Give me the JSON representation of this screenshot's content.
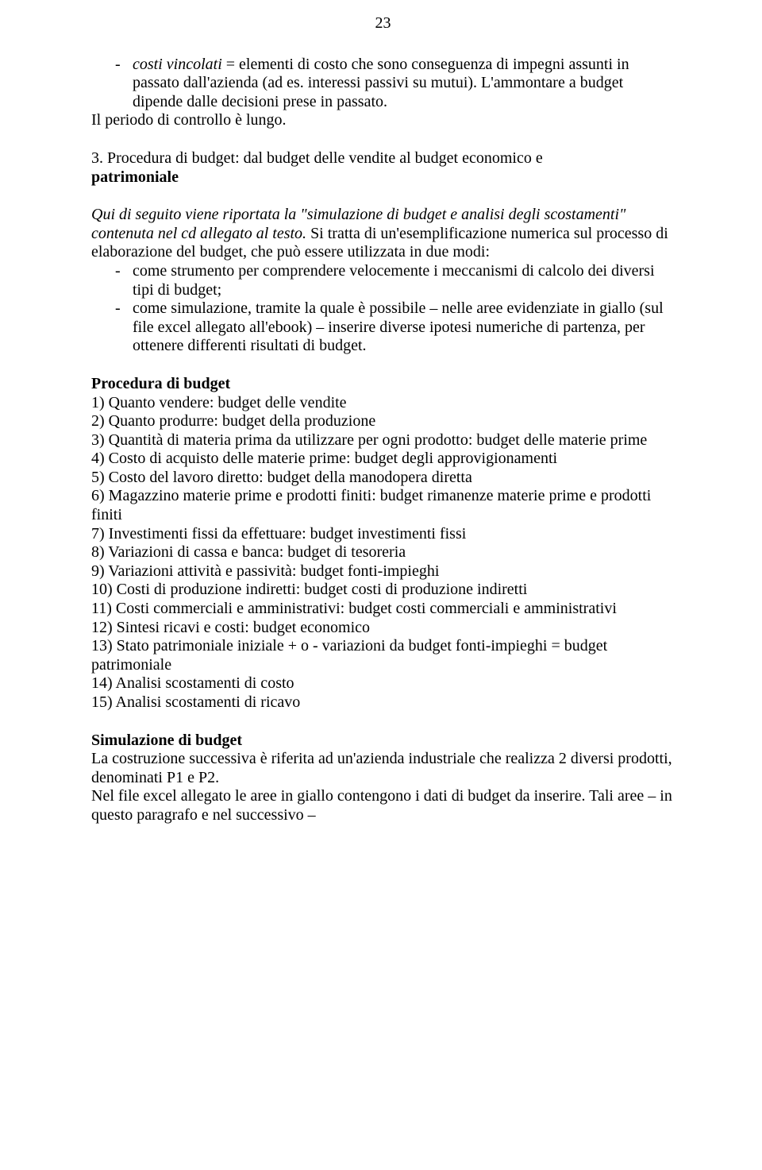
{
  "page_number": "23",
  "top_bullet": {
    "prefix": "costi vincolati",
    "rest_line1": " = elementi di costo che sono conseguenza di impegni assunti in passato dall'azienda (ad es. interessi passivi su mutui). L'ammontare a budget dipende dalle decisioni prese in passato."
  },
  "control_line": "Il periodo di controllo è lungo.",
  "section3_heading_line1": "3. Procedura di budget: dal budget delle vendite al budget economico e",
  "section3_heading_line2": "patrimoniale",
  "intro_para_italic": "Qui di seguito viene riportata la \"simulazione di budget e analisi degli scostamenti\" contenuta nel cd allegato al testo.",
  "intro_para_rest": " Si tratta di un'esemplificazione numerica sul processo di elaborazione del budget, che può essere utilizzata in due modi:",
  "intro_bullets": [
    "come strumento per comprendere velocemente i meccanismi di calcolo dei diversi tipi di budget;",
    "come simulazione, tramite la quale è possibile – nelle aree evidenziate in giallo (sul file excel allegato all'ebook) – inserire diverse ipotesi numeriche di partenza, per ottenere differenti risultati di budget."
  ],
  "procedura_heading": "Procedura di budget",
  "procedura_items": [
    "1) Quanto vendere: budget delle vendite",
    "2) Quanto produrre: budget della produzione",
    "3) Quantità di materia prima da utilizzare per ogni prodotto: budget delle materie prime",
    "4) Costo di acquisto delle materie prime: budget degli approvigionamenti",
    "5) Costo del lavoro diretto: budget della manodopera diretta",
    "6) Magazzino materie prime e prodotti finiti: budget rimanenze materie prime e prodotti finiti",
    "7) Investimenti fissi da effettuare: budget investimenti fissi",
    "8) Variazioni di cassa e banca: budget di tesoreria",
    "9) Variazioni attività e passività: budget fonti-impieghi",
    "10) Costi di produzione indiretti: budget costi di produzione indiretti",
    "11) Costi commerciali e amministrativi: budget costi commerciali e amministrativi",
    "12) Sintesi ricavi e costi: budget economico",
    "13) Stato patrimoniale iniziale + o - variazioni da budget fonti-impieghi = budget patrimoniale",
    "14) Analisi scostamenti di costo",
    "15) Analisi scostamenti di ricavo"
  ],
  "sim_heading": "Simulazione di budget",
  "sim_para1": "La costruzione successiva è riferita ad un'azienda industriale che realizza 2 diversi prodotti, denominati P1 e P2.",
  "sim_para2": "Nel file excel allegato le aree in giallo contengono i dati di budget da inserire. Tali aree – in questo paragrafo e nel successivo –"
}
